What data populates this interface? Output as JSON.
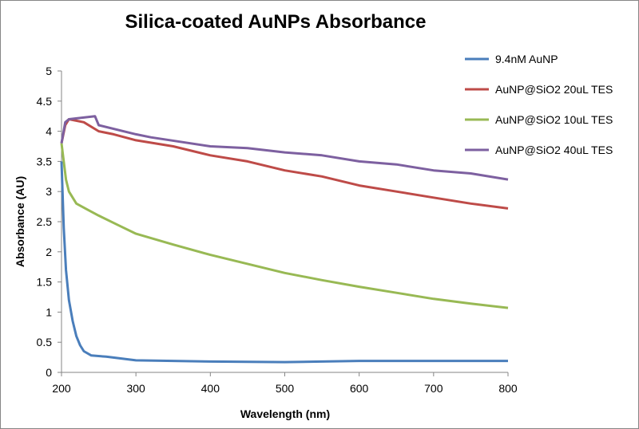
{
  "chart_data": {
    "type": "line",
    "title": "Silica-coated AuNPs Absorbance",
    "xlabel": "Wavelength  (nm)",
    "ylabel": "Absorbance (AU)",
    "xlim": [
      200,
      800
    ],
    "ylim": [
      0,
      5
    ],
    "xticks": [
      200,
      300,
      400,
      500,
      600,
      700,
      800
    ],
    "yticks": [
      "0",
      "0.5",
      "1",
      "1.5",
      "2",
      "2.5",
      "3",
      "3.5",
      "4",
      "4.5",
      "5"
    ],
    "grid": false,
    "legend": "right",
    "series": [
      {
        "name": "9.4nM AuNP",
        "color": "#4a7ebb",
        "x": [
          200,
          203,
          206,
          210,
          215,
          220,
          225,
          230,
          240,
          260,
          300,
          350,
          400,
          450,
          500,
          550,
          600,
          700,
          800
        ],
        "y": [
          3.5,
          2.4,
          1.7,
          1.2,
          0.85,
          0.6,
          0.45,
          0.35,
          0.28,
          0.26,
          0.2,
          0.19,
          0.18,
          0.175,
          0.17,
          0.18,
          0.19,
          0.19,
          0.19
        ]
      },
      {
        "name": "AuNP@SiO2 20uL TES",
        "color": "#be4b48",
        "x": [
          200,
          205,
          210,
          230,
          250,
          270,
          300,
          350,
          400,
          450,
          500,
          550,
          600,
          650,
          700,
          750,
          800
        ],
        "y": [
          3.8,
          4.1,
          4.2,
          4.15,
          4.0,
          3.95,
          3.85,
          3.75,
          3.6,
          3.5,
          3.35,
          3.25,
          3.1,
          3.0,
          2.9,
          2.8,
          2.72
        ]
      },
      {
        "name": "AuNP@SiO2 10uL TES",
        "color": "#98b954",
        "x": [
          200,
          203,
          206,
          210,
          220,
          235,
          250,
          275,
          300,
          350,
          400,
          450,
          500,
          550,
          600,
          650,
          700,
          750,
          800
        ],
        "y": [
          3.8,
          3.5,
          3.2,
          3.0,
          2.8,
          2.7,
          2.6,
          2.45,
          2.3,
          2.12,
          1.95,
          1.8,
          1.65,
          1.53,
          1.42,
          1.32,
          1.22,
          1.14,
          1.07
        ]
      },
      {
        "name": "AuNP@SiO2 40uL TES",
        "color": "#7d60a0",
        "x": [
          200,
          205,
          210,
          245,
          250,
          300,
          320,
          400,
          450,
          500,
          550,
          600,
          650,
          700,
          750,
          800
        ],
        "y": [
          3.8,
          4.15,
          4.2,
          4.25,
          4.1,
          3.95,
          3.9,
          3.75,
          3.72,
          3.65,
          3.6,
          3.5,
          3.45,
          3.35,
          3.3,
          3.2
        ]
      }
    ]
  }
}
